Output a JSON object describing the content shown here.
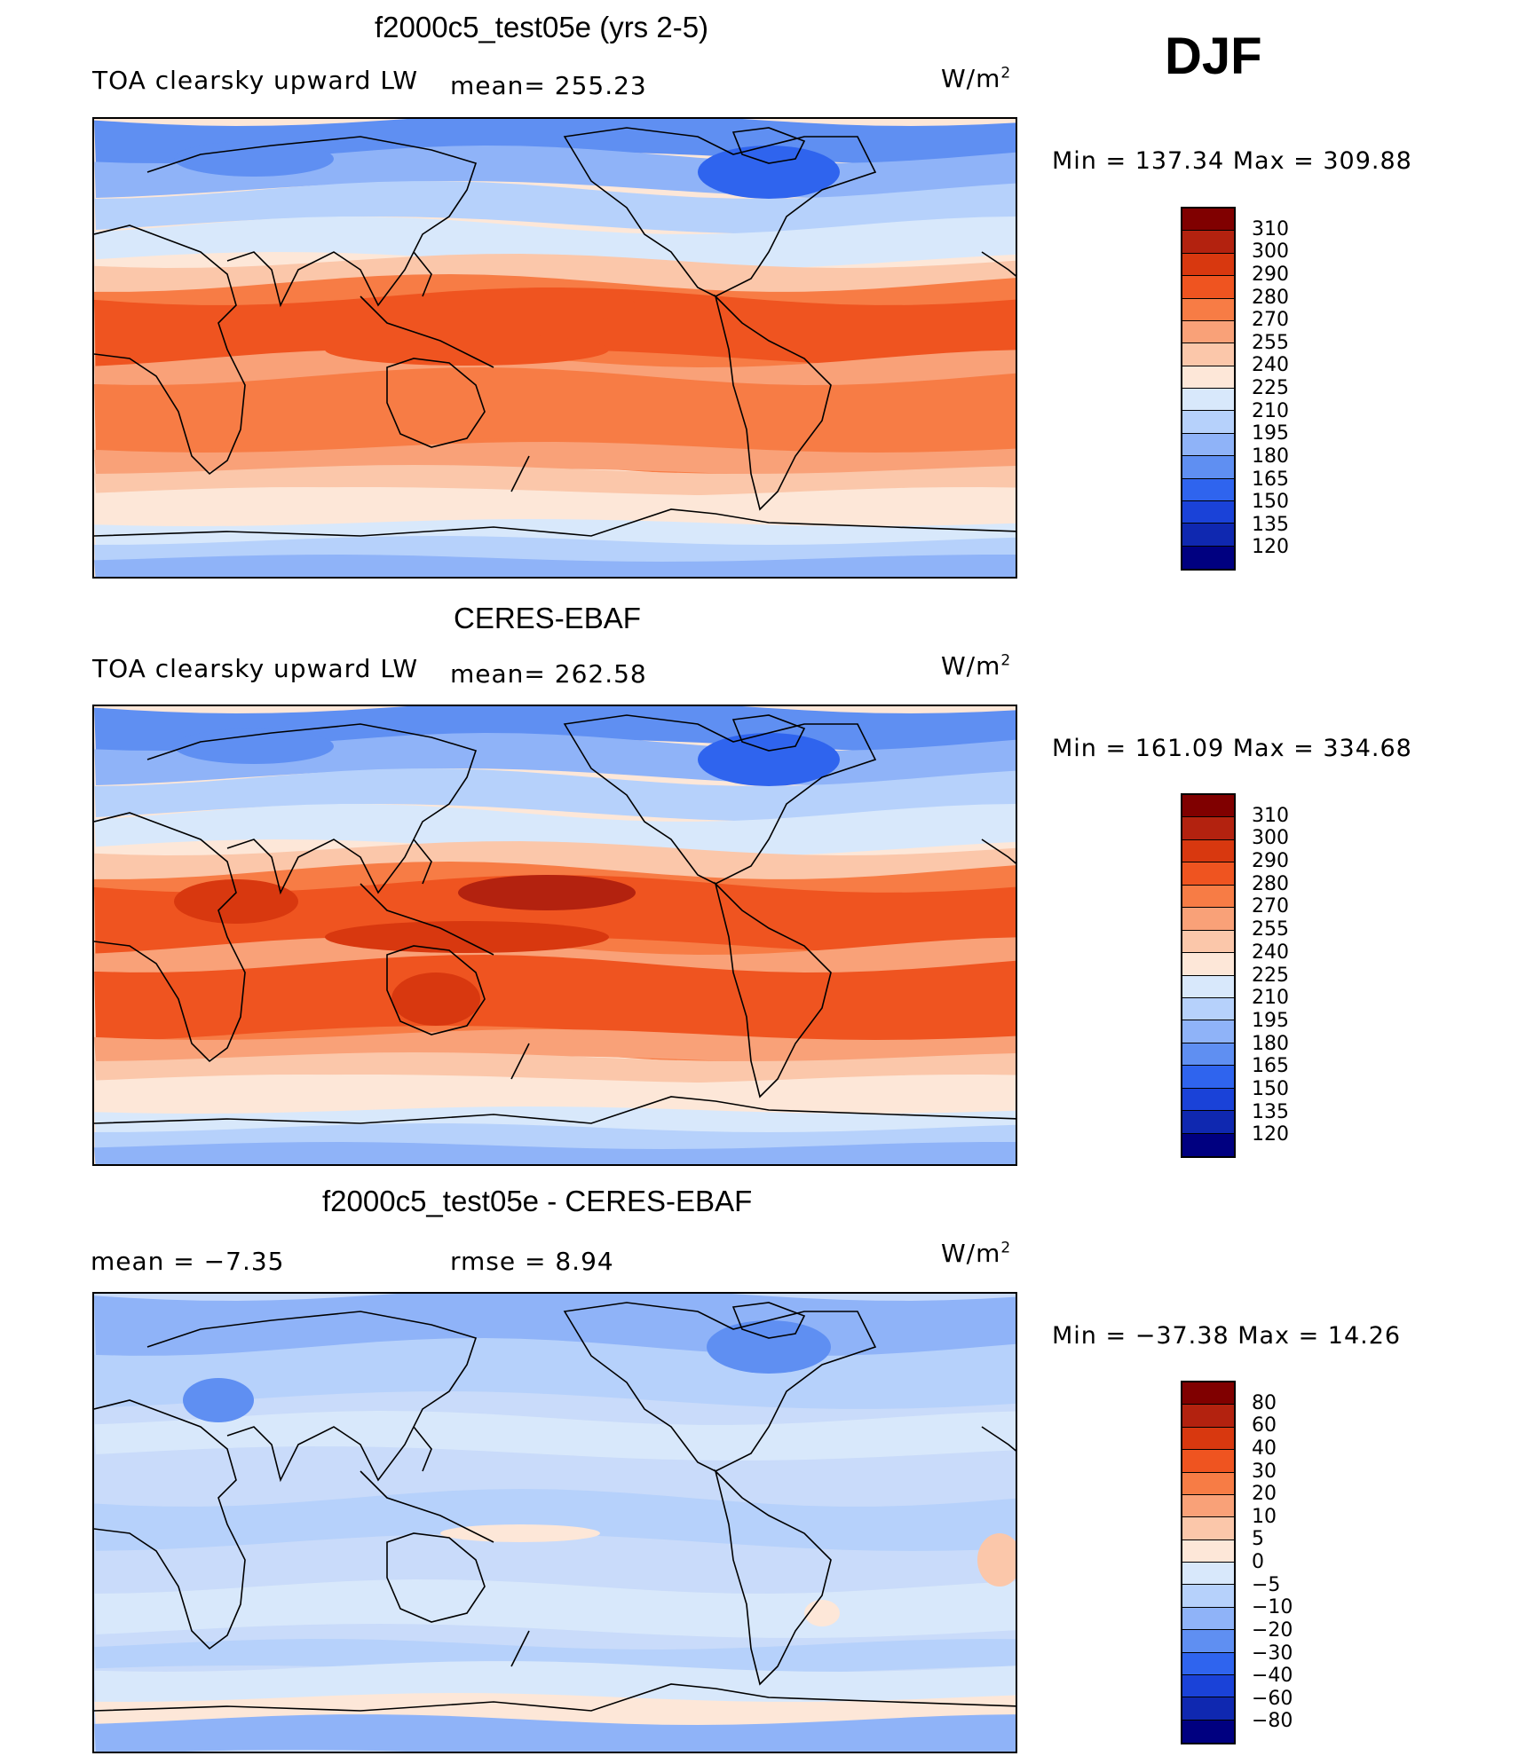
{
  "season": "DJF",
  "units": "W/m",
  "units_exp": "2",
  "panels": [
    {
      "title": "f2000c5_test05e (yrs 2-5)",
      "left_label": "TOA clearsky upward LW",
      "mid_label": "mean=  255.23",
      "minmax": "Min  =  137.34  Max  =  309.88",
      "kind": "field"
    },
    {
      "title": "CERES-EBAF",
      "left_label": "TOA clearsky upward LW",
      "mid_label": "mean=  262.58",
      "minmax": "Min  =  161.09  Max  =  334.68",
      "kind": "field_obs"
    },
    {
      "title": "f2000c5_test05e - CERES-EBAF",
      "left_label": "mean  =    −7.35",
      "mid_label": "rmse  =     8.94",
      "minmax": "Min  =  −37.38  Max  =    14.26",
      "kind": "diff"
    }
  ],
  "colorbars": {
    "field": {
      "labels": [
        "310",
        "300",
        "290",
        "280",
        "270",
        "255",
        "240",
        "225",
        "210",
        "195",
        "180",
        "165",
        "150",
        "135",
        "120"
      ],
      "colors": [
        "#800000",
        "#b3220f",
        "#d8380f",
        "#ef5420",
        "#f77c45",
        "#f9a178",
        "#fbc7aa",
        "#fde7d8",
        "#d8e8fb",
        "#b6d1fb",
        "#8fb3f8",
        "#5f8ff2",
        "#2f64ee",
        "#1a42d8",
        "#0f28b0",
        "#000080"
      ]
    },
    "diff": {
      "labels": [
        "80",
        "60",
        "40",
        "30",
        "20",
        "10",
        "5",
        "0",
        "−5",
        "−10",
        "−20",
        "−30",
        "−40",
        "−60",
        "−80"
      ],
      "colors": [
        "#800000",
        "#b3220f",
        "#d8380f",
        "#ef5420",
        "#f77c45",
        "#f9a178",
        "#fbc7aa",
        "#fde7d8",
        "#d8e8fb",
        "#b6d1fb",
        "#8fb3f8",
        "#5f8ff2",
        "#2f64ee",
        "#1a42d8",
        "#0f28b0",
        "#000080"
      ]
    }
  },
  "legend": {
    "description": "contour fill maps of the globe, Pacific-centered"
  }
}
